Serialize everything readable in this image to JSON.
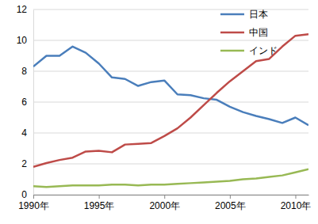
{
  "chart_data": {
    "type": "line",
    "x": [
      1990,
      1991,
      1992,
      1993,
      1994,
      1995,
      1996,
      1997,
      1998,
      1999,
      2000,
      2001,
      2002,
      2003,
      2004,
      2005,
      2006,
      2007,
      2008,
      2009,
      2010,
      2011
    ],
    "series": [
      {
        "name": "日本",
        "color": "#4a7ebb",
        "values": [
          8.3,
          9.0,
          9.0,
          9.6,
          9.2,
          8.5,
          7.6,
          7.5,
          7.05,
          7.3,
          7.4,
          6.5,
          6.45,
          6.25,
          6.15,
          5.7,
          5.35,
          5.1,
          4.9,
          4.65,
          5.0,
          4.5
        ]
      },
      {
        "name": "中国",
        "color": "#be4b48",
        "values": [
          1.8,
          2.05,
          2.25,
          2.4,
          2.8,
          2.85,
          2.75,
          3.25,
          3.3,
          3.35,
          3.8,
          4.3,
          5.0,
          5.8,
          6.6,
          7.35,
          8.0,
          8.65,
          8.8,
          9.6,
          10.3,
          10.4
        ]
      },
      {
        "name": "インド",
        "color": "#98b954",
        "values": [
          0.55,
          0.5,
          0.55,
          0.6,
          0.6,
          0.6,
          0.65,
          0.65,
          0.6,
          0.65,
          0.65,
          0.7,
          0.75,
          0.8,
          0.85,
          0.9,
          1.0,
          1.05,
          1.15,
          1.25,
          1.45,
          1.65
        ]
      }
    ],
    "xlim": [
      1990,
      2011
    ],
    "xticks": [
      {
        "value": 1990,
        "label": "1990年"
      },
      {
        "value": 1995,
        "label": "1995年"
      },
      {
        "value": 2000,
        "label": "2000年"
      },
      {
        "value": 2005,
        "label": "2005年"
      },
      {
        "value": 2010,
        "label": "2010年"
      }
    ],
    "ylim": [
      0,
      12
    ],
    "yticks": [
      0,
      2,
      4,
      6,
      8,
      10,
      12
    ],
    "grid": true,
    "legend": "upper center"
  }
}
